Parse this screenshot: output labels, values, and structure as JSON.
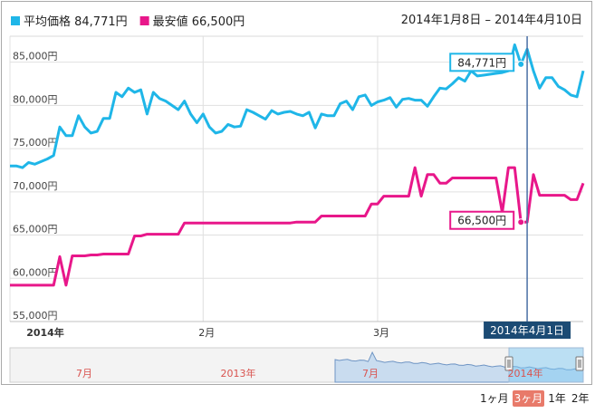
{
  "legend": [
    {
      "name": "平均価格 84,771円",
      "color": "#1fb6e8"
    },
    {
      "name": "最安値 66,500円",
      "color": "#e8178a"
    }
  ],
  "date_range": "2014年1月8日 – 2014年4月10日",
  "crosshair_label": "2014年4月1日",
  "navigator": {
    "labels": [
      "7月",
      "2013年",
      "7月",
      "2014年"
    ],
    "label_colors": [
      "#d9534f",
      "#d9534f",
      "#d9534f",
      "#d9534f"
    ]
  },
  "range_buttons": [
    {
      "label": "1ヶ月",
      "active": false
    },
    {
      "label": "3ヶ月",
      "active": true
    },
    {
      "label": "1年",
      "active": false
    },
    {
      "label": "2年",
      "active": false
    }
  ],
  "chart_data": {
    "type": "line",
    "ylim": [
      55000,
      88000
    ],
    "yticks": [
      55000,
      60000,
      65000,
      70000,
      75000,
      80000,
      85000
    ],
    "ytick_labels": [
      "55,000円",
      "60,000円",
      "65,000円",
      "70,000円",
      "75,000円",
      "80,000円",
      "85,000円"
    ],
    "xlim": [
      0,
      92
    ],
    "xticks": [
      {
        "pos": 0,
        "label": "2014年"
      },
      {
        "pos": 31,
        "label": "2月"
      },
      {
        "pos": 59,
        "label": "3月"
      }
    ],
    "crosshair_x": 83,
    "series": [
      {
        "name": "平均価格",
        "color": "#1fb6e8",
        "x": [
          0,
          1,
          2,
          3,
          4,
          5,
          6,
          7,
          8,
          9,
          10,
          11,
          12,
          13,
          14,
          15,
          16,
          17,
          18,
          19,
          20,
          21,
          22,
          23,
          24,
          25,
          26,
          27,
          28,
          29,
          30,
          31,
          32,
          33,
          34,
          35,
          36,
          37,
          38,
          39,
          40,
          41,
          42,
          43,
          44,
          45,
          46,
          47,
          48,
          49,
          50,
          51,
          52,
          53,
          54,
          55,
          56,
          57,
          58,
          59,
          60,
          61,
          62,
          63,
          64,
          65,
          66,
          67,
          68,
          69,
          70,
          71,
          72,
          73,
          74,
          75,
          76,
          77,
          78,
          79,
          80,
          81,
          82,
          83,
          84,
          85,
          86,
          87,
          88,
          89,
          90,
          91,
          92
        ],
        "values": [
          73000,
          73000,
          72800,
          73400,
          73200,
          73500,
          73800,
          74200,
          77500,
          76500,
          76500,
          78800,
          77500,
          76800,
          77000,
          78500,
          78500,
          81500,
          81000,
          82000,
          81500,
          81800,
          79000,
          81500,
          80800,
          80500,
          80000,
          79500,
          80500,
          79000,
          78000,
          79000,
          77500,
          76800,
          77000,
          77800,
          77500,
          77600,
          79500,
          79200,
          78800,
          78400,
          79400,
          79000,
          79200,
          79300,
          79000,
          78800,
          79200,
          77400,
          79000,
          78800,
          78800,
          80200,
          80500,
          79500,
          81000,
          81200,
          80000,
          80400,
          80600,
          80900,
          79800,
          80700,
          80800,
          80600,
          80600,
          79900,
          81000,
          82000,
          81900,
          82500,
          83200,
          82800,
          84000,
          83400,
          83500,
          83600,
          83700,
          83800,
          84000,
          87000,
          84771,
          86500,
          84000,
          82000,
          83200,
          83200,
          82200,
          81800,
          81200,
          81000,
          84000
        ],
        "callout": {
          "x": 82,
          "label": "84,771円"
        }
      },
      {
        "name": "最安値",
        "color": "#e8178a",
        "x": [
          0,
          1,
          2,
          3,
          4,
          5,
          6,
          7,
          8,
          9,
          10,
          11,
          12,
          13,
          14,
          15,
          16,
          17,
          18,
          19,
          20,
          21,
          22,
          23,
          24,
          25,
          26,
          27,
          28,
          29,
          30,
          31,
          32,
          33,
          34,
          35,
          36,
          37,
          38,
          39,
          40,
          41,
          42,
          43,
          44,
          45,
          46,
          47,
          48,
          49,
          50,
          51,
          52,
          53,
          54,
          55,
          56,
          57,
          58,
          59,
          60,
          61,
          62,
          63,
          64,
          65,
          66,
          67,
          68,
          69,
          70,
          71,
          72,
          73,
          74,
          75,
          76,
          77,
          78,
          79,
          80,
          81,
          82,
          83,
          84,
          85,
          86,
          87,
          88,
          89,
          90,
          91,
          92
        ],
        "values": [
          59200,
          59200,
          59200,
          59200,
          59200,
          59200,
          59200,
          59200,
          62500,
          59200,
          62600,
          62600,
          62600,
          62700,
          62700,
          62800,
          62800,
          62800,
          62800,
          62800,
          64900,
          64900,
          65100,
          65100,
          65100,
          65100,
          65100,
          65100,
          66400,
          66400,
          66400,
          66400,
          66400,
          66400,
          66400,
          66400,
          66400,
          66400,
          66400,
          66400,
          66400,
          66400,
          66400,
          66400,
          66400,
          66400,
          66500,
          66500,
          66500,
          66500,
          67200,
          67200,
          67200,
          67200,
          67200,
          67200,
          67200,
          67200,
          68600,
          68600,
          69500,
          69500,
          69500,
          69500,
          69500,
          72800,
          69500,
          72000,
          72000,
          71000,
          71000,
          71600,
          71600,
          71600,
          71600,
          71600,
          71600,
          71600,
          71600,
          67600,
          72800,
          72800,
          66500,
          66500,
          72000,
          69600,
          69600,
          69600,
          69600,
          69600,
          69100,
          69100,
          71000
        ],
        "callout": {
          "x": 82,
          "label": "66,500円"
        }
      }
    ]
  }
}
